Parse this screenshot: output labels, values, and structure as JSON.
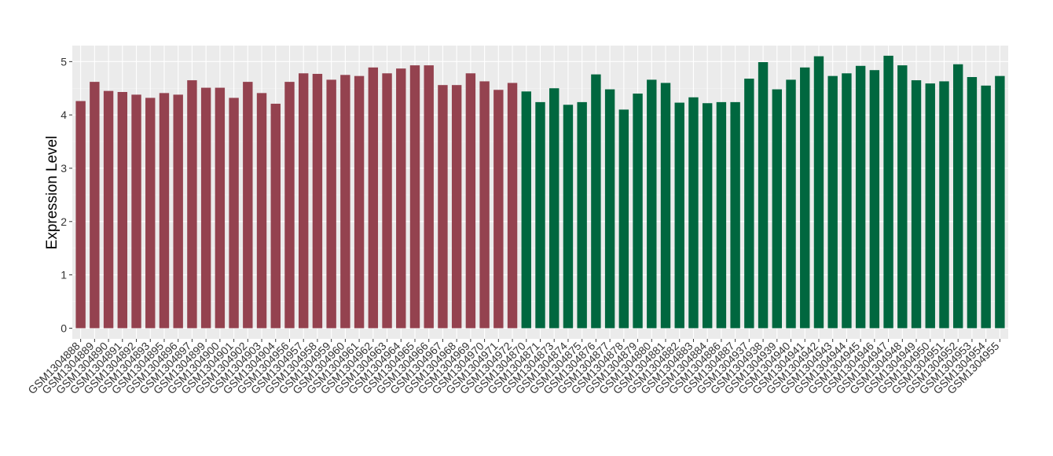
{
  "chart_data": {
    "type": "bar",
    "ylabel": "Expression Level",
    "xlabel": "",
    "ylim": [
      -0.2,
      5.3
    ],
    "yticks": [
      0,
      1,
      2,
      3,
      4,
      5
    ],
    "grid": true,
    "background": "#EBEBEB",
    "group_colors": [
      "#94424F",
      "#00673F"
    ],
    "categories": [
      "GSM1304888",
      "GSM1304889",
      "GSM1304890",
      "GSM1304891",
      "GSM1304892",
      "GSM1304893",
      "GSM1304895",
      "GSM1304896",
      "GSM1304897",
      "GSM1304899",
      "GSM1304900",
      "GSM1304901",
      "GSM1304902",
      "GSM1304903",
      "GSM1304904",
      "GSM1304956",
      "GSM1304957",
      "GSM1304958",
      "GSM1304959",
      "GSM1304960",
      "GSM1304961",
      "GSM1304962",
      "GSM1304963",
      "GSM1304964",
      "GSM1304965",
      "GSM1304966",
      "GSM1304967",
      "GSM1304968",
      "GSM1304969",
      "GSM1304970",
      "GSM1304971",
      "GSM1304972",
      "GSM1304870",
      "GSM1304871",
      "GSM1304873",
      "GSM1304874",
      "GSM1304875",
      "GSM1304876",
      "GSM1304877",
      "GSM1304878",
      "GSM1304879",
      "GSM1304880",
      "GSM1304881",
      "GSM1304882",
      "GSM1304883",
      "GSM1304884",
      "GSM1304886",
      "GSM1304887",
      "GSM1304937",
      "GSM1304938",
      "GSM1304939",
      "GSM1304940",
      "GSM1304941",
      "GSM1304942",
      "GSM1304943",
      "GSM1304944",
      "GSM1304945",
      "GSM1304946",
      "GSM1304947",
      "GSM1304948",
      "GSM1304949",
      "GSM1304950",
      "GSM1304951",
      "GSM1304952",
      "GSM1304953",
      "GSM1304954",
      "GSM1304955"
    ],
    "values": [
      4.26,
      4.62,
      4.45,
      4.43,
      4.38,
      4.32,
      4.41,
      4.38,
      4.65,
      4.51,
      4.51,
      4.32,
      4.62,
      4.41,
      4.21,
      4.62,
      4.78,
      4.77,
      4.66,
      4.75,
      4.73,
      4.89,
      4.78,
      4.87,
      4.93,
      4.93,
      4.56,
      4.56,
      4.78,
      4.63,
      4.47,
      4.6,
      4.44,
      4.24,
      4.5,
      4.19,
      4.24,
      4.76,
      4.48,
      4.1,
      4.4,
      4.66,
      4.6,
      4.23,
      4.33,
      4.22,
      4.24,
      4.24,
      4.68,
      4.99,
      4.48,
      4.66,
      4.89,
      5.1,
      4.73,
      4.78,
      4.92,
      4.84,
      5.11,
      4.93,
      4.65,
      4.59,
      4.63,
      4.95,
      4.71,
      4.55,
      4.73
    ],
    "groups": [
      0,
      0,
      0,
      0,
      0,
      0,
      0,
      0,
      0,
      0,
      0,
      0,
      0,
      0,
      0,
      0,
      0,
      0,
      0,
      0,
      0,
      0,
      0,
      0,
      0,
      0,
      0,
      0,
      0,
      0,
      0,
      0,
      1,
      1,
      1,
      1,
      1,
      1,
      1,
      1,
      1,
      1,
      1,
      1,
      1,
      1,
      1,
      1,
      1,
      1,
      1,
      1,
      1,
      1,
      1,
      1,
      1,
      1,
      1,
      1,
      1,
      1,
      1,
      1,
      1,
      1,
      1
    ]
  }
}
